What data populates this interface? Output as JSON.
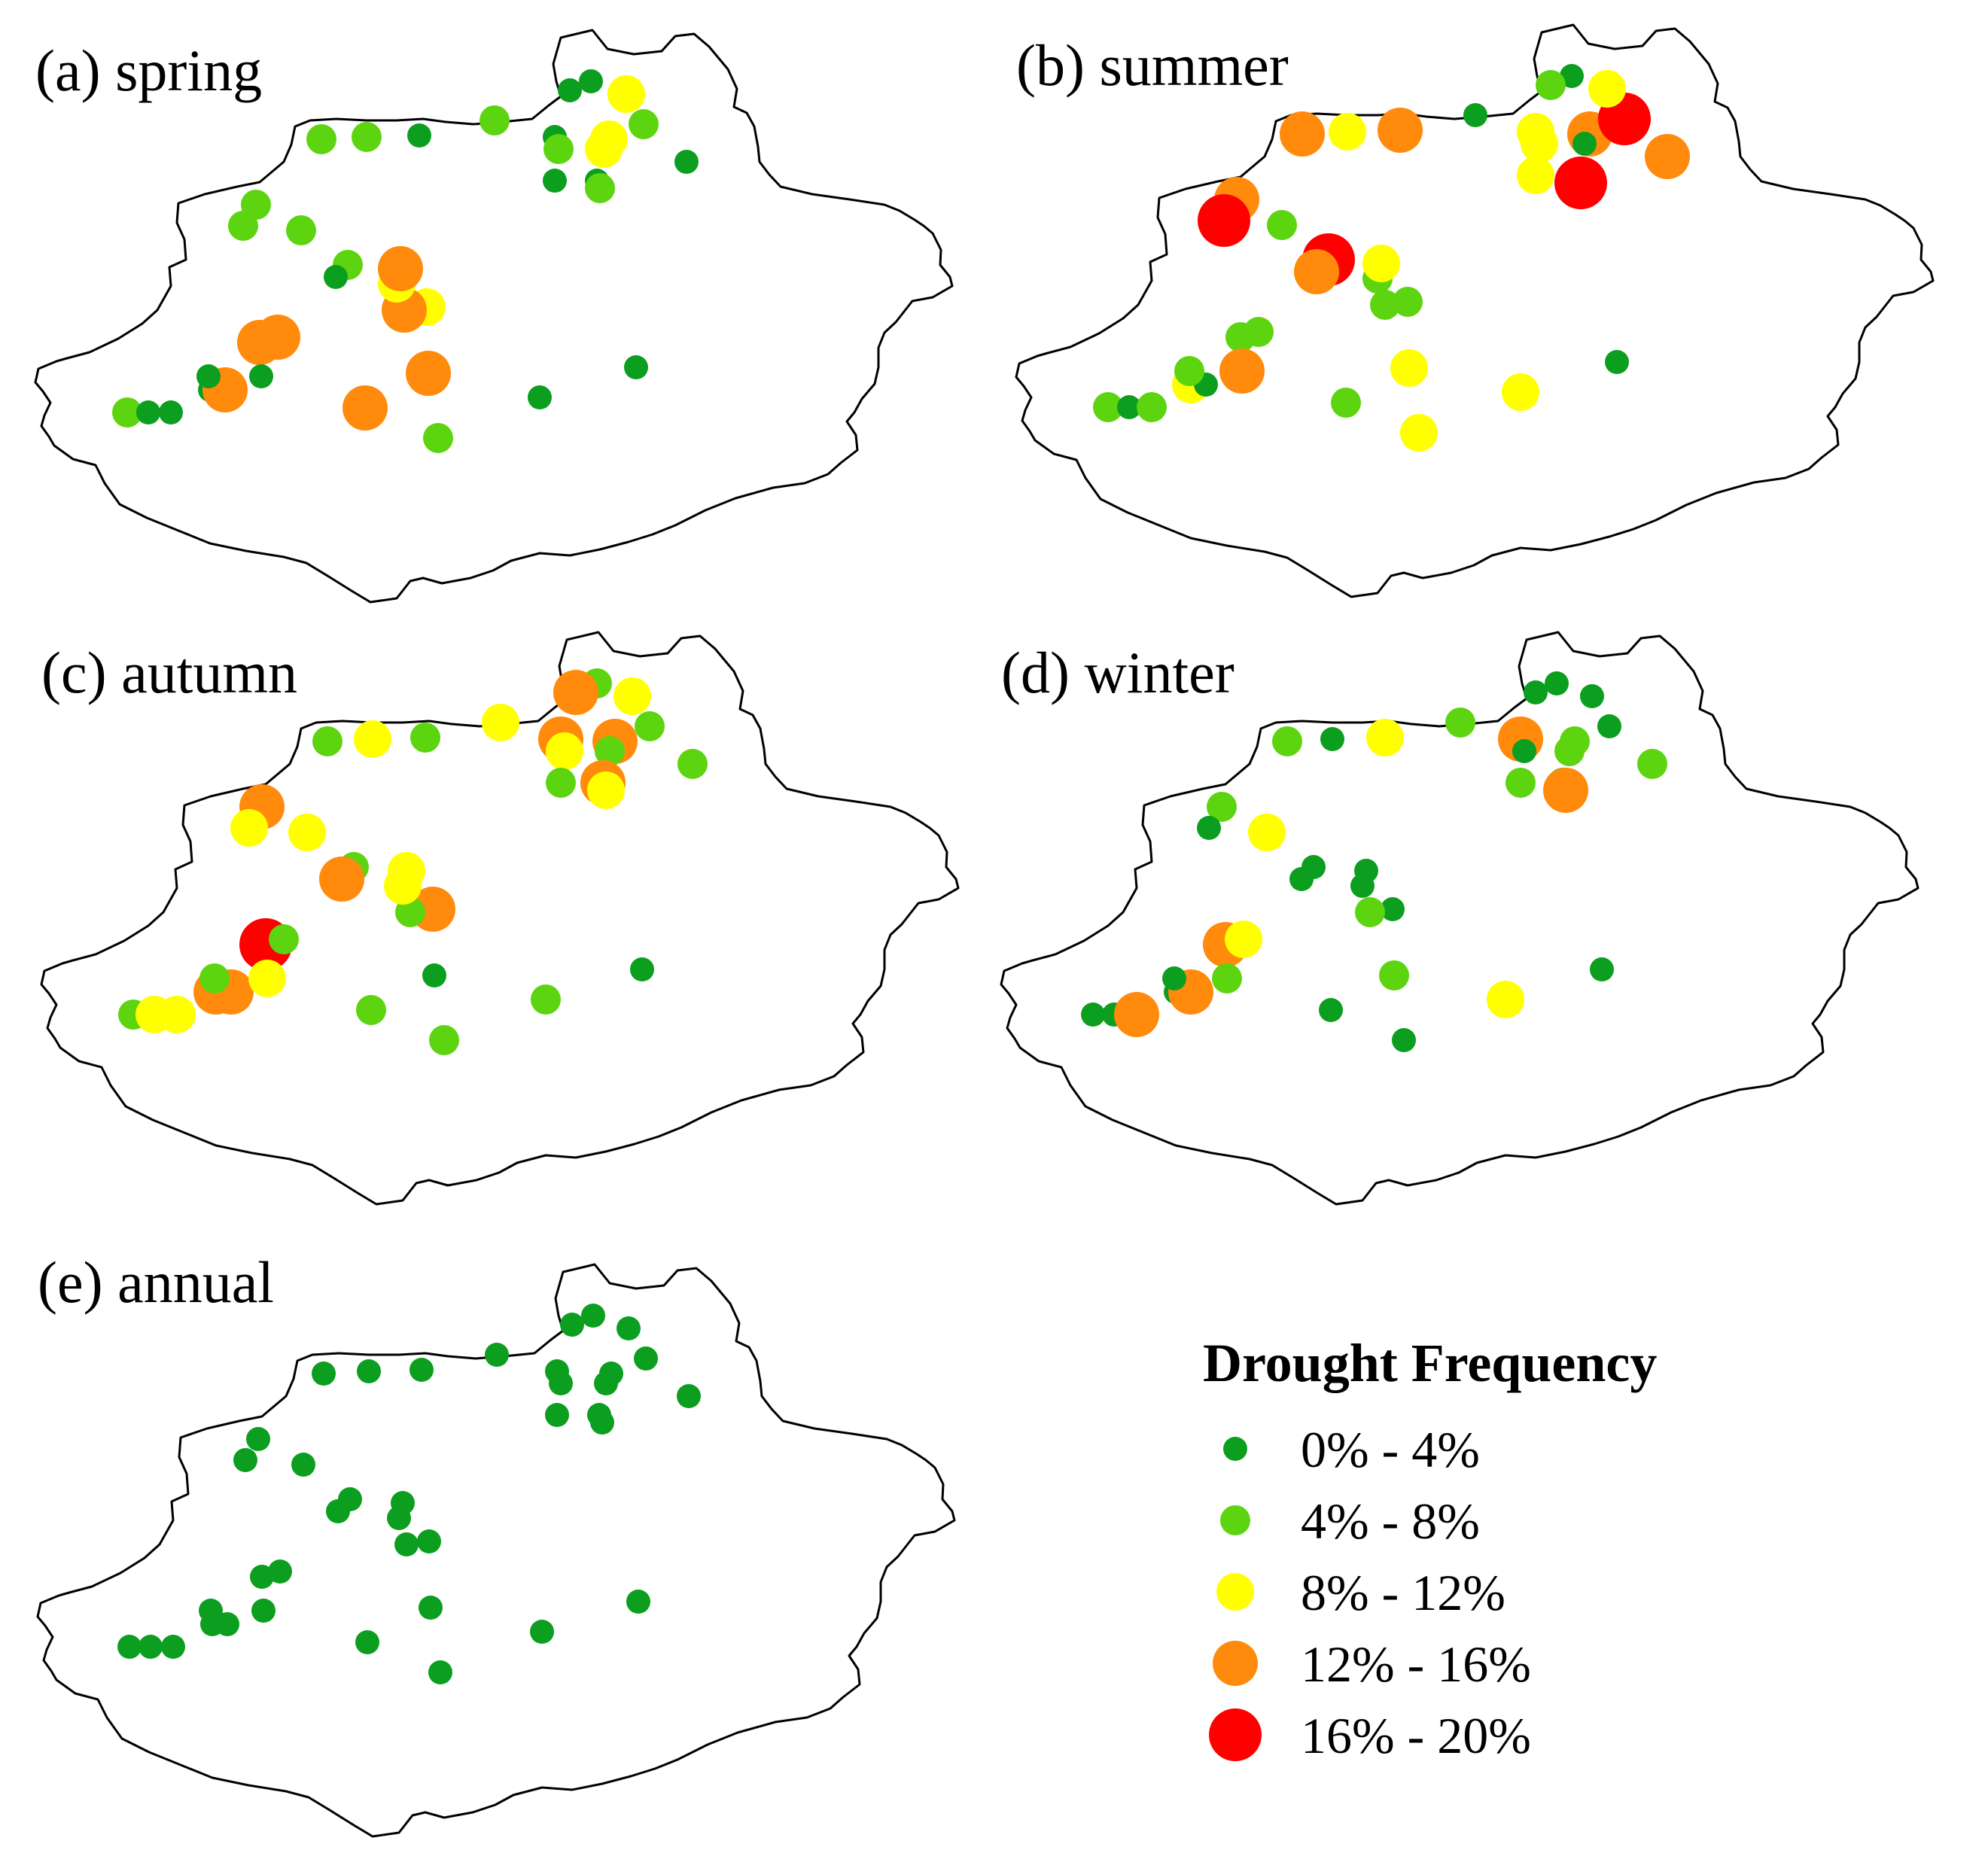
{
  "colors": {
    "c1": "#0b9e1f",
    "c2": "#5cd40f",
    "c3": "#ffff00",
    "c4": "#ff8a0c",
    "c5": "#ff0000"
  },
  "legend": {
    "title": "Drought Frequency",
    "classes": [
      {
        "label": "0% - 4%",
        "color_key": "c1"
      },
      {
        "label": "4% - 8%",
        "color_key": "c2"
      },
      {
        "label": "8% - 12%",
        "color_key": "c3"
      },
      {
        "label": "12% - 16%",
        "color_key": "c4"
      },
      {
        "label": "16% - 20%",
        "color_key": "c5"
      }
    ]
  },
  "panels": [
    {
      "title": "(a) spring",
      "stations": [
        [
          2,
          2
        ],
        [
          1,
          1
        ],
        [
          1,
          3
        ],
        [
          1,
          1
        ],
        [
          4,
          4
        ],
        [
          4,
          2
        ],
        [
          4,
          2
        ],
        [
          2,
          3
        ],
        [
          4,
          1
        ],
        [
          3,
          4
        ],
        [
          4,
          3
        ],
        [
          3,
          1
        ],
        [
          4,
          3
        ],
        [
          2,
          1
        ],
        [
          2,
          2
        ],
        [
          2,
          2
        ],
        [
          2,
          2
        ],
        [
          1,
          1
        ],
        [
          2,
          2
        ],
        [
          2,
          1
        ],
        [
          1,
          1
        ],
        [
          2,
          1
        ],
        [
          1,
          1
        ],
        [
          2,
          3
        ],
        [
          3,
          3
        ],
        [
          2,
          2
        ],
        [
          3,
          2
        ],
        [
          1,
          1
        ],
        [
          1,
          3
        ],
        [
          3,
          2
        ],
        [
          1,
          1
        ],
        [
          1,
          1
        ],
        [
          2,
          2
        ],
        [
          1,
          1
        ],
        [
          1,
          1
        ],
        [
          1,
          1
        ],
        [
          4,
          3
        ],
        [
          1,
          1
        ],
        [
          1,
          1
        ]
      ]
    },
    {
      "title": "(b) summer",
      "stations": [
        [
          2,
          1
        ],
        [
          1,
          1
        ],
        [
          2,
          2
        ],
        [
          3,
          2
        ],
        [
          1,
          3
        ],
        [
          2,
          2
        ],
        [
          2,
          4
        ],
        [
          3,
          4
        ],
        [
          3,
          4
        ],
        [
          2,
          1
        ],
        [
          2,
          2
        ],
        [
          2,
          3
        ],
        [
          3,
          3
        ],
        [
          5,
          3
        ],
        [
          2,
          2
        ],
        [
          4,
          3
        ],
        [
          5,
          3
        ],
        [
          4,
          4
        ],
        [
          4,
          1
        ],
        [
          3,
          5
        ],
        [
          4,
          4
        ],
        [
          1,
          1
        ],
        [
          3,
          3
        ],
        [
          3,
          2
        ],
        [
          4,
          4
        ],
        [
          5,
          1
        ],
        [
          3,
          3
        ],
        [
          1,
          3
        ],
        [
          2,
          2
        ],
        [
          1,
          4
        ],
        [
          2,
          1
        ],
        [
          3,
          4
        ],
        [
          5,
          1
        ],
        [
          4,
          4
        ],
        [
          1,
          3
        ],
        [
          3,
          4
        ],
        [
          2,
          2
        ],
        [
          4,
          4
        ],
        [
          2,
          2
        ]
      ]
    },
    {
      "title": "(c) autumn",
      "stations": [
        [
          2,
          1
        ],
        [
          3,
          2
        ],
        [
          3,
          5
        ],
        [
          4,
          1
        ],
        [
          4,
          4
        ],
        [
          5,
          2
        ],
        [
          2,
          3
        ],
        [
          2,
          2
        ],
        [
          1,
          3
        ],
        [
          4,
          3
        ],
        [
          2,
          1
        ],
        [
          3,
          2
        ],
        [
          3,
          3
        ],
        [
          2,
          4
        ],
        [
          3,
          1
        ],
        [
          4,
          2
        ],
        [
          3,
          4
        ],
        [
          4,
          1
        ],
        [
          2,
          1
        ],
        [
          3,
          4
        ],
        [
          2,
          2
        ],
        [
          3,
          1
        ],
        [
          4,
          4
        ],
        [
          3,
          2
        ],
        [
          4,
          4
        ],
        [
          2,
          3
        ],
        [
          3,
          3
        ],
        [
          2,
          2
        ],
        [
          4,
          3
        ],
        [
          2,
          1
        ],
        [
          4,
          1
        ],
        [
          2,
          1
        ],
        [
          3,
          3
        ],
        [
          2,
          2
        ],
        [
          1,
          3
        ],
        [
          2,
          4
        ],
        [
          2,
          3
        ],
        [
          3,
          2
        ],
        [
          2,
          2
        ]
      ]
    },
    {
      "title": "(d) winter",
      "stations": [
        [
          1,
          1
        ],
        [
          1,
          2
        ],
        [
          4,
          4
        ],
        [
          1,
          1
        ],
        [
          4,
          1
        ],
        [
          4,
          3
        ],
        [
          3,
          4
        ],
        [
          1,
          2
        ],
        [
          2,
          3
        ],
        [
          1,
          1
        ],
        [
          2,
          2
        ],
        [
          1,
          1
        ],
        [
          1,
          1
        ],
        [
          1,
          1
        ],
        [
          3,
          1
        ],
        [
          2,
          2
        ],
        [
          1,
          1
        ],
        [
          1,
          1
        ],
        [
          2,
          1
        ],
        [
          1,
          2
        ],
        [
          3,
          1
        ],
        [
          2,
          3
        ],
        [
          4,
          2
        ],
        [
          1,
          1
        ],
        [
          2,
          1
        ],
        [
          1,
          1
        ],
        [
          1,
          3
        ],
        [
          1,
          1
        ],
        [
          1,
          2
        ],
        [
          2,
          1
        ],
        [
          2,
          1
        ],
        [
          2,
          3
        ],
        [
          4,
          2
        ],
        [
          2,
          1
        ],
        [
          1,
          1
        ],
        [
          3,
          1
        ],
        [
          1,
          1
        ],
        [
          2,
          2
        ],
        [
          1,
          1
        ]
      ]
    },
    {
      "title": "(e) annual",
      "stations": [
        [
          1,
          1
        ],
        [
          1,
          1
        ],
        [
          1,
          1
        ],
        [
          1,
          1
        ],
        [
          1,
          1
        ],
        [
          1,
          1
        ],
        [
          1,
          1
        ],
        [
          1,
          1
        ],
        [
          1,
          1
        ],
        [
          1,
          1
        ],
        [
          1,
          1
        ],
        [
          1,
          1
        ],
        [
          1,
          1
        ],
        [
          1,
          1
        ],
        [
          1,
          1
        ],
        [
          1,
          1
        ],
        [
          1,
          1
        ],
        [
          1,
          1
        ],
        [
          1,
          1
        ],
        [
          1,
          1
        ],
        [
          1,
          1
        ],
        [
          1,
          1
        ],
        [
          1,
          1
        ],
        [
          1,
          1
        ],
        [
          1,
          1
        ],
        [
          1,
          1
        ],
        [
          1,
          1
        ],
        [
          1,
          1
        ],
        [
          1,
          1
        ],
        [
          1,
          1
        ],
        [
          1,
          1
        ],
        [
          1,
          1
        ],
        [
          1,
          1
        ],
        [
          1,
          1
        ],
        [
          1,
          1
        ],
        [
          1,
          1
        ],
        [
          1,
          1
        ],
        [
          1,
          1
        ],
        [
          1,
          1
        ]
      ]
    }
  ]
}
